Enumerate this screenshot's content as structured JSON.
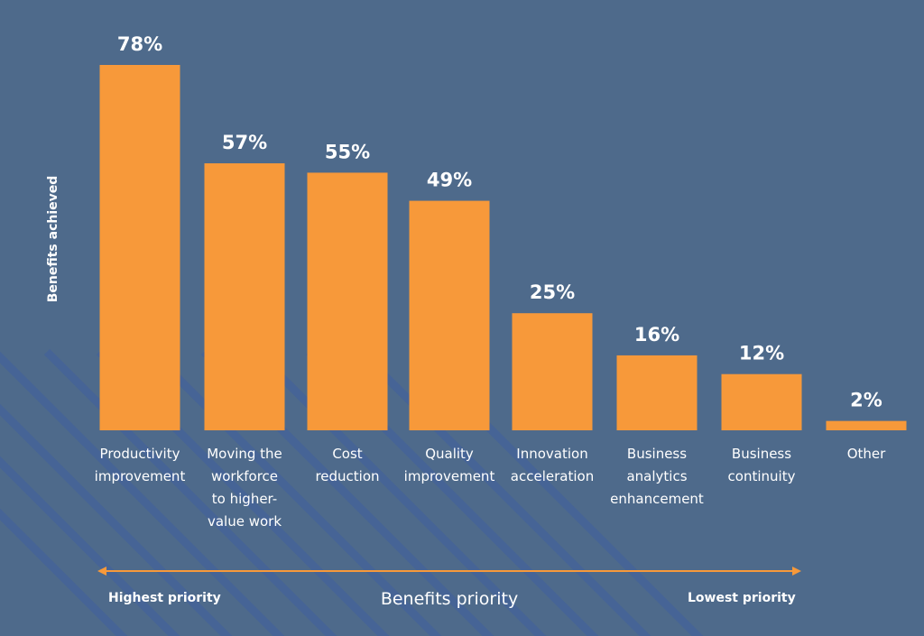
{
  "chart_data": {
    "type": "bar",
    "categories": [
      [
        "Productivity",
        "improvement"
      ],
      [
        "Moving the",
        "workforce",
        "to higher-",
        "value work"
      ],
      [
        "Cost",
        "reduction"
      ],
      [
        "Quality",
        "improvement"
      ],
      [
        "Innovation",
        "acceleration"
      ],
      [
        "Business",
        "analytics",
        "enhancement"
      ],
      [
        "Business",
        "continuity"
      ],
      [
        "Other"
      ]
    ],
    "values": [
      78,
      57,
      55,
      49,
      25,
      16,
      12,
      2
    ],
    "value_labels": [
      "78%",
      "57%",
      "55%",
      "49%",
      "25%",
      "16%",
      "12%",
      "2%"
    ],
    "ylabel": "Benefits achieved",
    "xlabel": "Benefits priority",
    "ylim": [
      0,
      100
    ],
    "grid": false
  },
  "priority_range": {
    "left_label": "Highest priority",
    "right_label": "Lowest priority"
  },
  "colors": {
    "background": "#4e6a8b",
    "bar": "#f7993a",
    "arrow": "#f7993a",
    "text": "#ffffff",
    "stripe": "#3f5fa0"
  }
}
